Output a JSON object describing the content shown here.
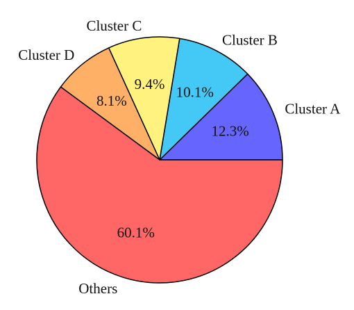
{
  "chart_data": {
    "type": "pie",
    "title": "",
    "start_angle_deg": 0,
    "direction": "counterclockwise",
    "slices": [
      {
        "label": "Cluster A",
        "value": 12.3,
        "value_label": "12.3%",
        "color": "#6666ff"
      },
      {
        "label": "Cluster B",
        "value": 10.1,
        "value_label": "10.1%",
        "color": "#44c8f5"
      },
      {
        "label": "Cluster C",
        "value": 9.4,
        "value_label": "9.4%",
        "color": "#fff27f"
      },
      {
        "label": "Cluster D",
        "value": 8.1,
        "value_label": "8.1%",
        "color": "#ffb067"
      },
      {
        "label": "Others",
        "value": 60.1,
        "value_label": "60.1%",
        "color": "#ff6666"
      }
    ]
  }
}
